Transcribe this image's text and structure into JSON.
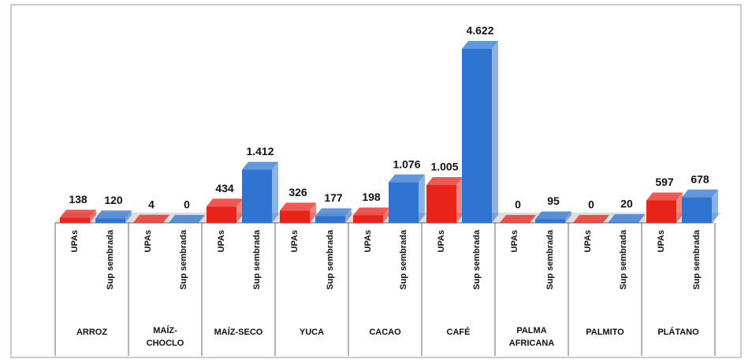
{
  "chart_data": {
    "type": "bar",
    "categories": [
      "ARROZ",
      "MAÍZ-\nCHOCLO",
      "MAÍZ-SECO",
      "YUCA",
      "CACAO",
      "CAFÉ",
      "PALMA\nAFRICANA",
      "PALMITO",
      "PLÁTANO"
    ],
    "series": [
      {
        "name": "UPAs",
        "color": "#e8231a",
        "values": [
          138,
          4,
          434,
          326,
          198,
          1005,
          0,
          0,
          597
        ],
        "value_labels": [
          "138",
          "4",
          "434",
          "326",
          "198",
          "1.005",
          "0",
          "0",
          "597"
        ]
      },
      {
        "name": "Sup sembrada",
        "color": "#2f74d0",
        "values": [
          120,
          0,
          1412,
          177,
          1076,
          4622,
          95,
          20,
          678
        ],
        "value_labels": [
          "120",
          "0",
          "1.412",
          "177",
          "1.076",
          "4.622",
          "95",
          "20",
          "678"
        ]
      }
    ]
  }
}
